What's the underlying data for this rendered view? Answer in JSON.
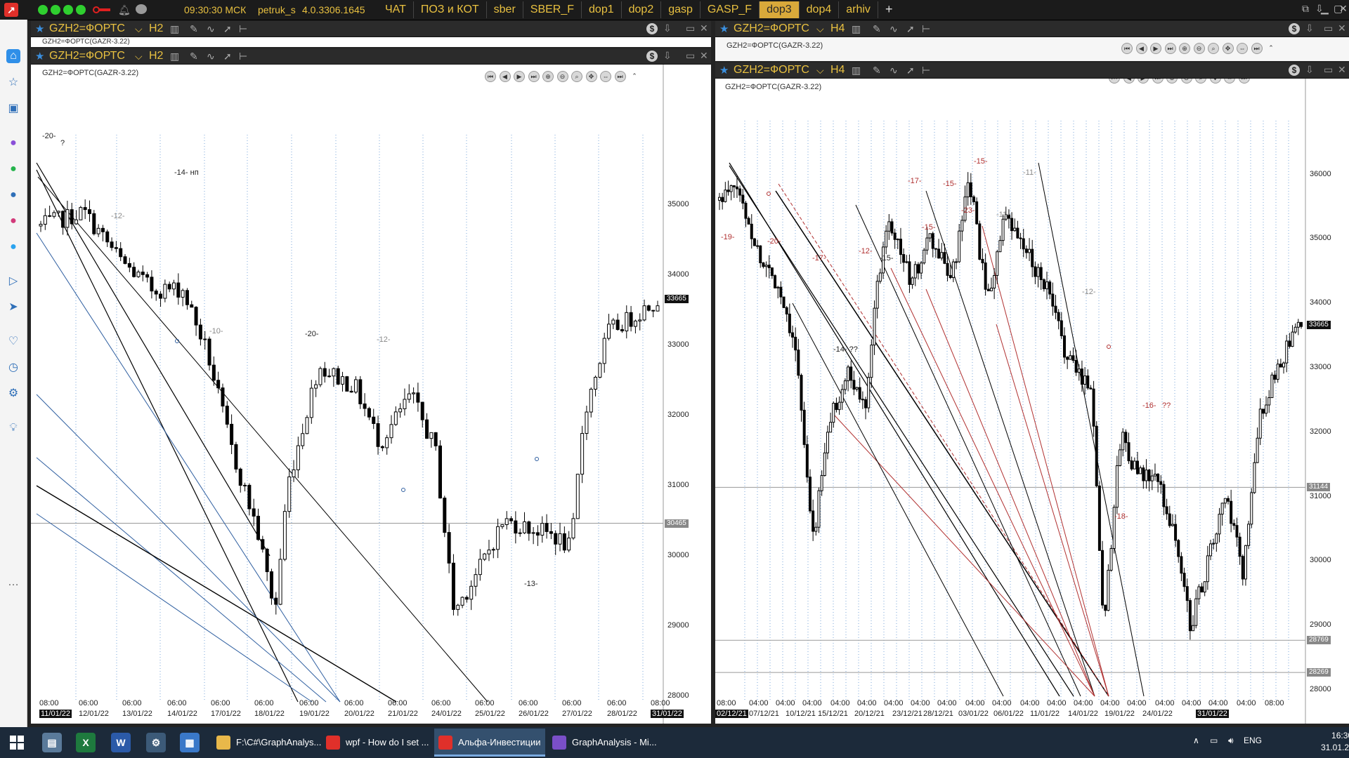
{
  "topbar": {
    "time": "09:30:30 МСК",
    "user": "petruk_s",
    "version": "4.0.3306.1645",
    "tabs": [
      {
        "label": "ЧАТ",
        "active": false
      },
      {
        "label": "ПОЗ и КОТ",
        "active": false
      },
      {
        "label": "sber",
        "active": false
      },
      {
        "label": "SBER_F",
        "active": false
      },
      {
        "label": "dop1",
        "active": false
      },
      {
        "label": "dop2",
        "active": false
      },
      {
        "label": "gasp",
        "active": false
      },
      {
        "label": "GASP_F",
        "active": false
      },
      {
        "label": "dop3",
        "active": true
      },
      {
        "label": "dop4",
        "active": false
      },
      {
        "label": "arhiv",
        "active": false
      }
    ],
    "add_tab": "+"
  },
  "sidebar": {
    "icons": [
      "home-icon",
      "star-icon",
      "briefcase-icon",
      "messenger-icon",
      "whatsapp-icon",
      "vk-icon",
      "instagram-icon",
      "twitter-icon",
      "play-icon",
      "send-icon",
      "heart-icon",
      "clock-icon",
      "gear-icon",
      "bulb-icon",
      "more-icon"
    ]
  },
  "left_window": {
    "symbol": "GZH2=ФОРТС",
    "timeframe": "H2",
    "chart_title": "GZH2=ФОРТС(GAZR-3.22)",
    "back_title": "GZH2=ФОРТС(GAZR-3.22)",
    "y_ticks": [
      "35000",
      "34000",
      "33000",
      "32000",
      "31000",
      "30000",
      "29000",
      "28000"
    ],
    "last_price": "33665",
    "level_price": "30465",
    "x_times": [
      "08:00",
      "06:00",
      "06:00",
      "06:00",
      "06:00",
      "06:00",
      "06:00",
      "06:00",
      "06:00",
      "06:00",
      "06:00",
      "06:00",
      "06:00",
      "06:00",
      "08:00"
    ],
    "x_dates": [
      "11/01/22",
      "12/01/22",
      "13/01/22",
      "14/01/22",
      "17/01/22",
      "18/01/22",
      "19/01/22",
      "20/01/22",
      "21/01/22",
      "24/01/22",
      "25/01/22",
      "26/01/22",
      "27/01/22",
      "28/01/22",
      "31/01/22"
    ],
    "annotations": [
      "-20-",
      "?",
      "-14- нп",
      "-12-",
      "-10-",
      "-20-",
      "-12-",
      "-13-"
    ]
  },
  "right_window": {
    "symbol": "GZH2=ФОРТС",
    "timeframe": "H4",
    "chart_title": "GZH2=ФОРТС(GAZR-3.22)",
    "back_title": "GZH2=ФОРТС(GAZR-3.22)",
    "y_ticks": [
      "36000",
      "35000",
      "34000",
      "33000",
      "32000",
      "31000",
      "30000",
      "29000",
      "28000"
    ],
    "last_price": "33665",
    "level_prices": [
      "31144",
      "28769",
      "28269"
    ],
    "x_times": [
      "08:00",
      "04:00",
      "04:00",
      "04:00",
      "04:00",
      "04:00",
      "04:00",
      "04:00",
      "04:00",
      "04:00",
      "04:00",
      "04:00",
      "04:00",
      "04:00",
      "04:00",
      "04:00",
      "04:00",
      "04:00",
      "04:00",
      "04:00",
      "08:00"
    ],
    "x_dates": [
      "02/12/21",
      "07/12/21",
      "10/12/21",
      "15/12/21",
      "20/12/21",
      "23/12/21",
      "28/12/21",
      "03/01/22",
      "06/01/22",
      "11/01/22",
      "14/01/22",
      "19/01/22",
      "24/01/22",
      "31/01/22"
    ],
    "annotations": [
      "-19-",
      "-20-",
      "-17-",
      "-12-",
      "-15-",
      "-14- ??",
      "-17-",
      "-15-",
      "-15-",
      "-23-",
      "-15-",
      "-11-",
      "-11-",
      "-12-",
      "-16-",
      "??",
      "-18-"
    ]
  },
  "taskbar": {
    "apps": [
      {
        "label": "F:\\C#\\GraphAnalys...",
        "active": false
      },
      {
        "label": "wpf - How do I set ...",
        "active": false
      },
      {
        "label": "Альфа-Инвестиции",
        "active": true
      },
      {
        "label": "GraphAnalysis - Mi...",
        "active": false
      }
    ],
    "lang": "ENG",
    "clock_time": "16:30",
    "clock_date": "31.01.2022"
  },
  "colors": {
    "accent": "#e8c040",
    "bull": "#ffffff",
    "bear": "#000000",
    "trend_blue": "#2f5fa0",
    "trend_red": "#b03030"
  }
}
